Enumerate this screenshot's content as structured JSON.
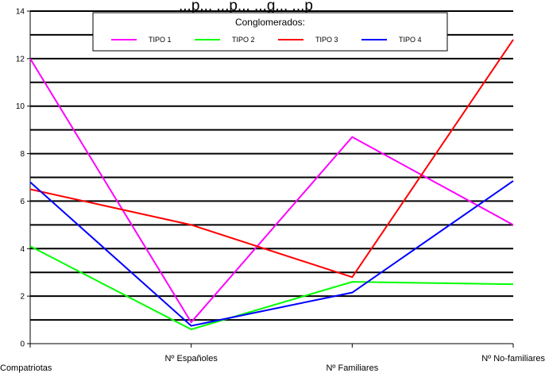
{
  "header_text": "...p... ...p... ...g... ...p",
  "chart_data": {
    "type": "line",
    "categories": [
      "Compatriotas",
      "Nº Españoles",
      "Nº Familiares",
      "Nº No-familiares"
    ],
    "ylim": [
      0,
      14
    ],
    "yticks": [
      0,
      2,
      4,
      6,
      8,
      10,
      12,
      14
    ],
    "grid_y_step": 1,
    "legend": {
      "title": "Conglomerados:",
      "placement": "top-center"
    },
    "series": [
      {
        "name": "TIPO 1",
        "color": "#ff00ff",
        "values": [
          12.0,
          0.9,
          8.7,
          5.0
        ]
      },
      {
        "name": "TIPO 2",
        "color": "#00ff00",
        "values": [
          4.1,
          0.6,
          2.6,
          2.5
        ]
      },
      {
        "name": "TIPO 3",
        "color": "#ff0000",
        "values": [
          6.5,
          5.0,
          2.8,
          12.8
        ]
      },
      {
        "name": "TIPO 4",
        "color": "#0000ff",
        "values": [
          6.8,
          0.75,
          2.15,
          6.85
        ]
      }
    ]
  }
}
